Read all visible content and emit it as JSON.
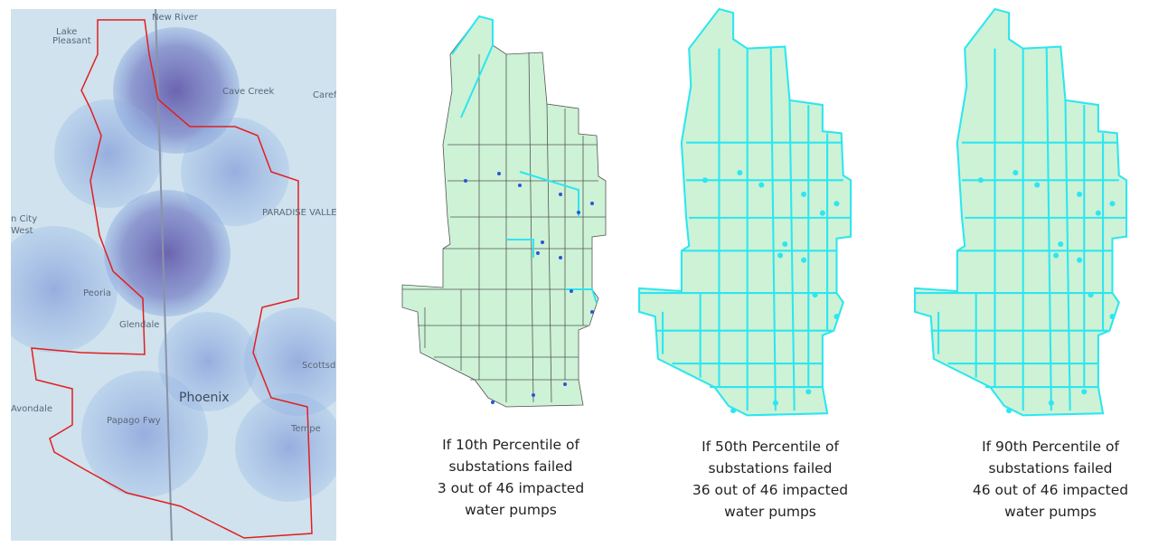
{
  "base_map": {
    "labels": [
      "New River",
      "Lake",
      "Pleasant",
      "Cave Creek",
      "Carefree",
      "PARADISE VALLEY",
      "Peoria",
      "Glendale",
      "Phoenix",
      "Scottsdale",
      "Tempe",
      "Avondale",
      "Papago Fwy",
      "n City",
      "West"
    ]
  },
  "panels": [
    {
      "caption": [
        "If 10th Percentile of",
        "substations failed",
        "3 out of 46 impacted",
        "water pumps"
      ]
    },
    {
      "caption": [
        "If 50th Percentile of",
        "substations failed",
        "36 out of 46 impacted",
        "water pumps"
      ]
    },
    {
      "caption": [
        "If 90th Percentile of",
        "substations failed",
        "46 out of 46 impacted",
        "water pumps"
      ]
    }
  ]
}
